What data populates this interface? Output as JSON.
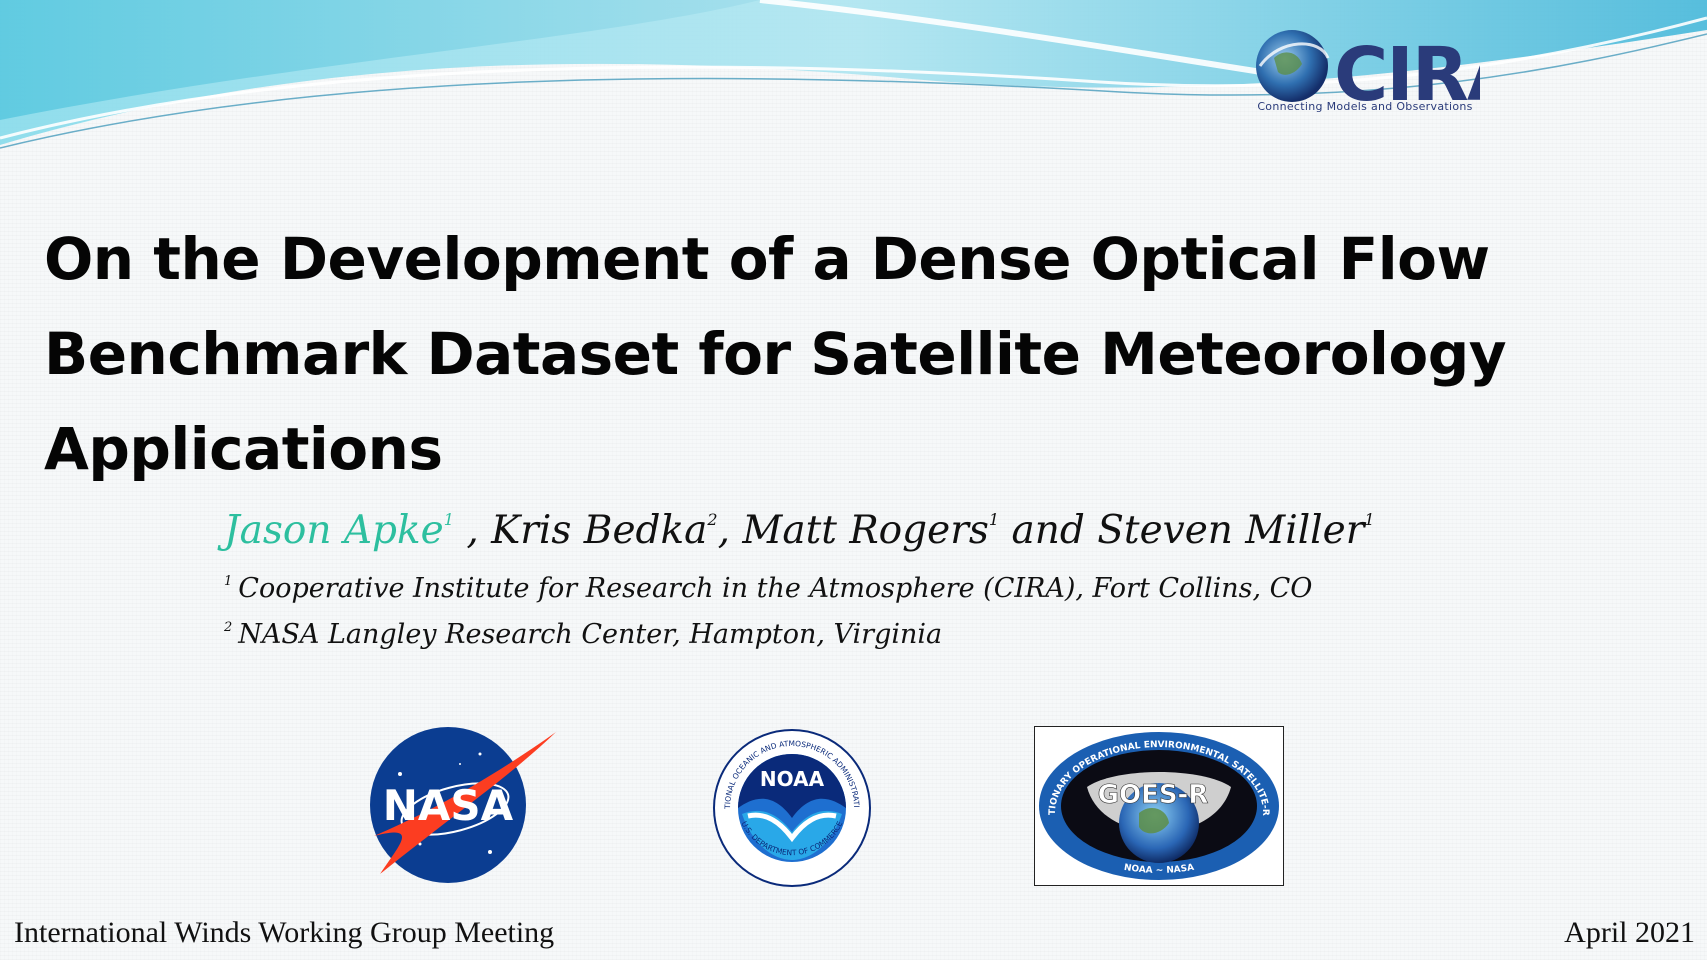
{
  "header": {
    "cira_logo_text": "CIRA",
    "cira_tagline": "Connecting Models and Observations"
  },
  "title": {
    "line1": "On the Development of a Dense Optical Flow",
    "line2": "Benchmark Dataset for Satellite Meteorology",
    "line3": "Applications"
  },
  "authors": {
    "lead_name": "Jason Apke",
    "lead_sup": "1",
    "sep1": " , ",
    "a2_name": "Kris Bedka",
    "a2_sup": "2",
    "sep2": ", ",
    "a3_name": "Matt Rogers",
    "a3_sup": "1",
    "sep3": " and ",
    "a4_name": "Steven Miller",
    "a4_sup": "1"
  },
  "affiliations": [
    {
      "sup": "1",
      "text": "Cooperative Institute for Research in the Atmosphere (CIRA), Fort Collins, CO"
    },
    {
      "sup": "2",
      "text": "NASA Langley Research Center, Hampton, Virginia"
    }
  ],
  "logos": {
    "nasa_text": "NASA",
    "noaa_text": "NOAA",
    "noaa_ring_top": "NATIONAL OCEANIC AND ATMOSPHERIC ADMINISTRATION",
    "noaa_ring_bottom": "U.S. DEPARTMENT OF COMMERCE",
    "goes_text": "GOES-R",
    "goes_ring_top": "GEOSTATIONARY OPERATIONAL ENVIRONMENTAL SATELLITE-R SERIES",
    "goes_ring_bottom": "NOAA ~ NASA"
  },
  "footer": {
    "left": "International Winds Working Group Meeting",
    "right": "April 2021"
  },
  "colors": {
    "accent_teal": "#2dbf9f",
    "wave_blue": "#5fc8e0",
    "cira_navy": "#2a3b7a",
    "nasa_blue": "#0b3d91",
    "nasa_red": "#fc3d21"
  }
}
